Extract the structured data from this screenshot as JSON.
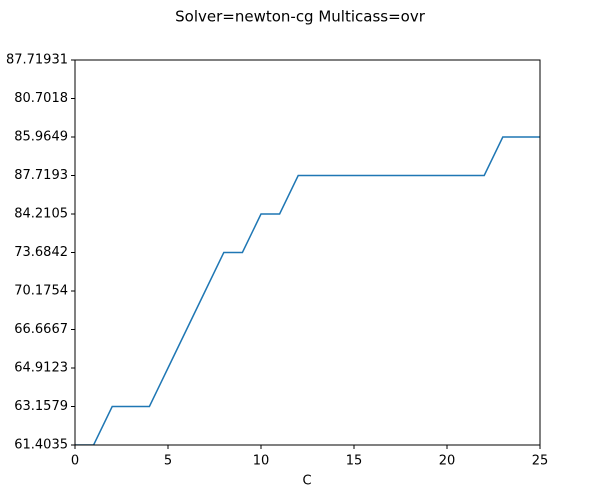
{
  "chart_data": {
    "type": "line",
    "title": "Solver=newton-cg Multicass=ovr",
    "xlabel": "C",
    "x": [
      0,
      1,
      2,
      3,
      4,
      5,
      6,
      7,
      8,
      9,
      10,
      11,
      12,
      13,
      14,
      15,
      16,
      17,
      18,
      19,
      20,
      21,
      22,
      23,
      24,
      25
    ],
    "series": [
      {
        "color": "#1f77b4",
        "values": [
          0,
          0,
          1,
          1,
          1,
          2,
          3,
          4,
          5,
          5,
          6,
          6,
          7,
          7,
          7,
          7,
          7,
          7,
          7,
          7,
          7,
          7,
          7,
          8,
          8,
          8
        ]
      }
    ],
    "xlim": [
      0,
      25
    ],
    "xticks": [
      0,
      5,
      10,
      15,
      20,
      25
    ],
    "ylim": [
      0,
      10
    ],
    "yticks": [
      {
        "value": 0,
        "label": "61.4035"
      },
      {
        "value": 1,
        "label": "63.1579"
      },
      {
        "value": 2,
        "label": "64.9123"
      },
      {
        "value": 3,
        "label": "66.6667"
      },
      {
        "value": 4,
        "label": "70.1754"
      },
      {
        "value": 5,
        "label": "73.6842"
      },
      {
        "value": 6,
        "label": "84.2105"
      },
      {
        "value": 7,
        "label": "87.7193"
      },
      {
        "value": 8,
        "label": "85.9649"
      },
      {
        "value": 9,
        "label": "80.7018"
      },
      {
        "value": 10,
        "label": "87.71931"
      }
    ]
  }
}
